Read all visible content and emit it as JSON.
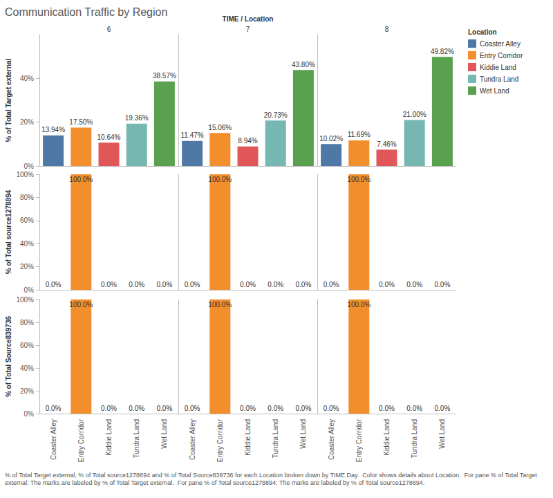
{
  "chart_data": {
    "type": "bar",
    "title": "Communication Traffic by Region",
    "facet_title": "TIME / Location",
    "facets": [
      "6",
      "7",
      "8"
    ],
    "legend": "right",
    "legend_title": "Location",
    "caption": "% of Total Target external, % of Total source1278894 and % of Total Source839736 for each Location broken down by TIME Day.  Color shows details about Location.  For pane % of Total Target external: The marks are labeled by % of Total Target external.  For pane % of Total source1278894: The marks are labeled by % of Total source1278894.",
    "categories": [
      "Coaster Alley",
      "Entry Corridor",
      "Kiddie Land",
      "Tundra Land",
      "Wet Land"
    ],
    "colors": [
      "#4e79a7",
      "#f28e2b",
      "#e15759",
      "#76b7b2",
      "#59a14f"
    ],
    "data_labels": true,
    "grid": false,
    "rows": [
      {
        "y_label": "% of Total Target external",
        "ylim": [
          0,
          60
        ],
        "yticks": [
          {
            "value": 0,
            "label": "0%"
          },
          {
            "value": 20,
            "label": "20%"
          },
          {
            "value": 40,
            "label": "40%"
          }
        ],
        "values": [
          [
            13.94,
            17.5,
            10.64,
            19.36,
            38.57
          ],
          [
            11.47,
            15.06,
            8.94,
            20.73,
            43.8
          ],
          [
            10.02,
            11.69,
            7.46,
            21,
            49.82
          ]
        ],
        "value_labels": [
          [
            "13.94%",
            "17.50%",
            "10.64%",
            "19.36%",
            "38.57%"
          ],
          [
            "11.47%",
            "15.06%",
            "8.94%",
            "20.73%",
            "43.80%"
          ],
          [
            "10.02%",
            "11.69%",
            "7.46%",
            "21.00%",
            "49.82%"
          ]
        ]
      },
      {
        "y_label": "% of Total source1278894",
        "ylim": [
          0,
          100
        ],
        "yticks": [
          {
            "value": 0,
            "label": "0%"
          },
          {
            "value": 20,
            "label": "20%"
          },
          {
            "value": 40,
            "label": "40%"
          },
          {
            "value": 60,
            "label": "60%"
          },
          {
            "value": 80,
            "label": "80%"
          },
          {
            "value": 100,
            "label": "100%"
          }
        ],
        "values": [
          [
            0,
            100,
            0,
            0,
            0
          ],
          [
            0,
            100,
            0,
            0,
            0
          ],
          [
            0,
            100,
            0,
            0,
            0
          ]
        ],
        "value_labels": [
          [
            "0.0%",
            "100.0%",
            "0.0%",
            "0.0%",
            "0.0%"
          ],
          [
            "0.0%",
            "100.0%",
            "0.0%",
            "0.0%",
            "0.0%"
          ],
          [
            "0.0%",
            "100.0%",
            "0.0%",
            "0.0%",
            "0.0%"
          ]
        ]
      },
      {
        "y_label": "% of Total Source839736",
        "ylim": [
          0,
          100
        ],
        "yticks": [
          {
            "value": 0,
            "label": "0%"
          },
          {
            "value": 20,
            "label": "20%"
          },
          {
            "value": 40,
            "label": "40%"
          },
          {
            "value": 60,
            "label": "60%"
          },
          {
            "value": 80,
            "label": "80%"
          },
          {
            "value": 100,
            "label": "100%"
          }
        ],
        "values": [
          [
            0,
            100,
            0,
            0,
            0
          ],
          [
            0,
            100,
            0,
            0,
            0
          ],
          [
            0,
            100,
            0,
            0,
            0
          ]
        ],
        "value_labels": [
          [
            "0.0%",
            "100.0%",
            "0.0%",
            "0.0%",
            "0.0%"
          ],
          [
            "0.0%",
            "100.0%",
            "0.0%",
            "0.0%",
            "0.0%"
          ],
          [
            "0.0%",
            "100.0%",
            "0.0%",
            "0.0%",
            "0.0%"
          ]
        ]
      }
    ]
  }
}
